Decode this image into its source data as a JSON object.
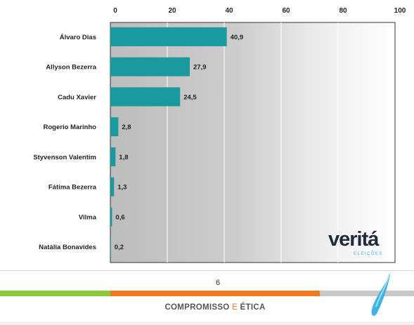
{
  "chart_data": {
    "type": "bar",
    "orientation": "horizontal",
    "categories": [
      "Álvaro Dias",
      "Allyson Bezerra",
      "Cadu Xavier",
      "Rogerio Marinho",
      "Styvenson Valentim",
      "Fátima Bezerra",
      "Vilma",
      "Natália Bonavides"
    ],
    "values": [
      40.9,
      27.9,
      24.5,
      2.8,
      1.8,
      1.3,
      0.6,
      0.2
    ],
    "value_labels": [
      "40,9",
      "27,9",
      "24,5",
      "2,8",
      "1,8",
      "1,3",
      "0,6",
      "0,2"
    ],
    "x_ticks": [
      "0",
      "20",
      "40",
      "60",
      "80",
      "100"
    ],
    "xlim": [
      0,
      100
    ],
    "axis_position": "top",
    "grid": true,
    "bar_color": "#1a9a9e"
  },
  "watermark": {
    "brand": "veritá",
    "subtitle": "ELEIÇÕES"
  },
  "footer": {
    "page_number": "6",
    "slogan_left": "COMPROMISSO",
    "slogan_joiner": "E",
    "slogan_right": "ÉTICA",
    "stripe_colors": {
      "green": "#8dc63f",
      "orange": "#f07a22",
      "gray": "#c8c8c8"
    },
    "drop_color": "#3fb3e8"
  }
}
